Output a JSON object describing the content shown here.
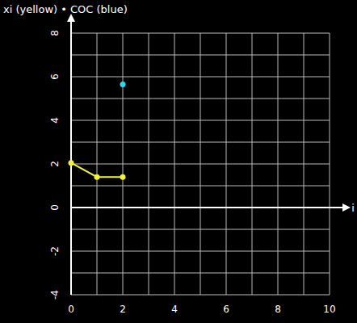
{
  "chart_data": {
    "type": "line",
    "title": "xi (yellow) • COC (blue)",
    "x_label": "i",
    "x": [
      0,
      1,
      2
    ],
    "series": [
      {
        "color": "#f2f23a",
        "marker": "circle",
        "values": [
          2.05,
          1.4,
          1.4
        ]
      },
      {
        "type": "scatter",
        "color": "#1ee0f0",
        "marker": "circle",
        "values": [
          null,
          null,
          5.65
        ]
      }
    ],
    "xlim": [
      0,
      10
    ],
    "xticks": [
      0,
      2,
      4,
      6,
      8,
      10
    ],
    "ylim": [
      -4,
      8
    ],
    "yticks": [
      -4,
      -2,
      0,
      2,
      4,
      6,
      8
    ],
    "grid": true
  }
}
